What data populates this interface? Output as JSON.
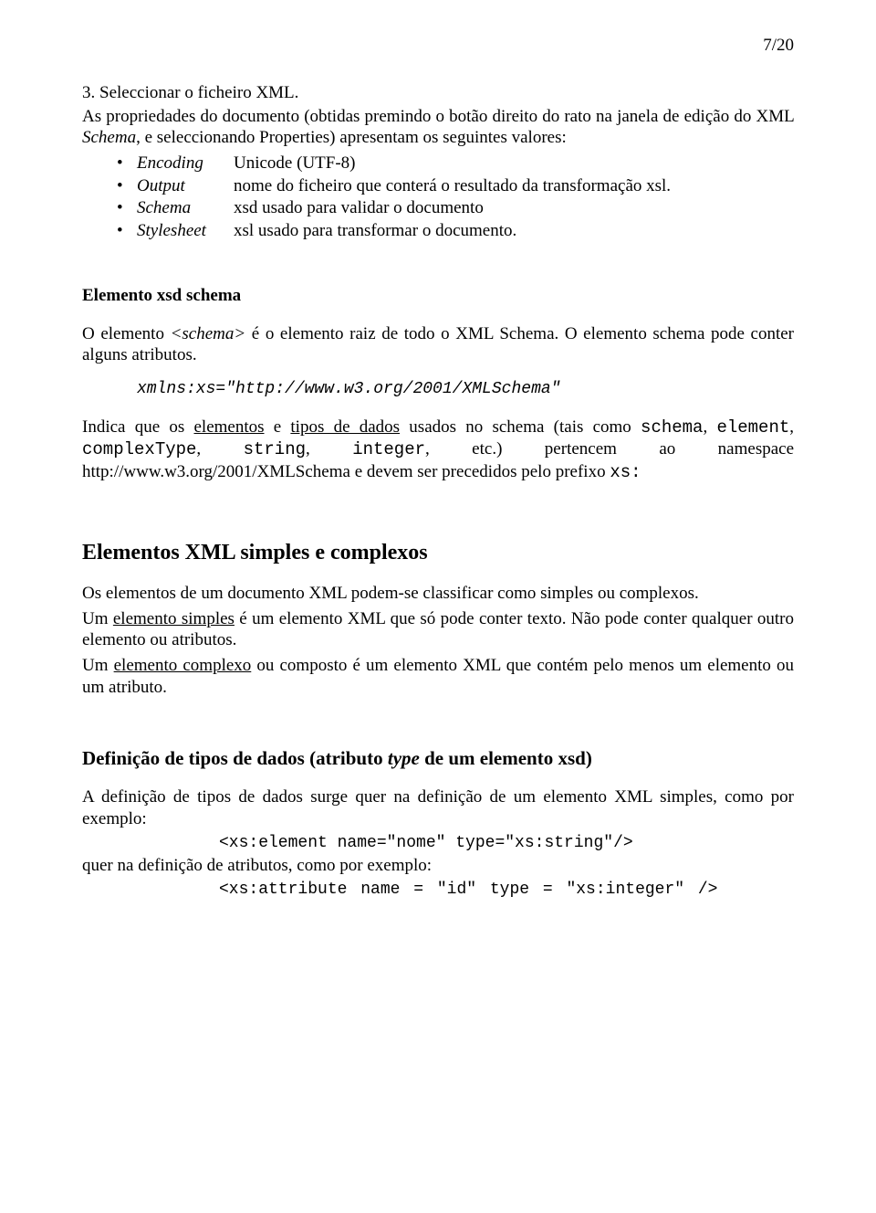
{
  "page_number": "7/20",
  "intro": {
    "line1": "3. Seleccionar o ficheiro XML.",
    "line2_prefix": "As propriedades do documento (obtidas premindo o botão direito do rato na janela de edição do XML",
    "line2_schema_word": "Schema",
    "line2_suffix": ", e seleccionando Properties) apresentam os seguintes valores:"
  },
  "bullets": [
    {
      "term": "Encoding",
      "desc": "Unicode (UTF-8)"
    },
    {
      "term": "Output",
      "desc": "nome do ficheiro que conterá o resultado da transformação xsl."
    },
    {
      "term": "Schema",
      "desc": "xsd usado para validar o documento"
    },
    {
      "term": "Stylesheet",
      "desc": "xsl usado para transformar o documento."
    }
  ],
  "sec1": {
    "title": "Elemento xsd schema",
    "p1_a": "O elemento ",
    "p1_b": "<schema>",
    "p1_c": " é o elemento raiz de todo o XML Schema. O elemento schema pode conter alguns atributos.",
    "code": "xmlns:xs=\"http://www.w3.org/2001/XMLSchema\"",
    "p2_a": "Indica que os ",
    "p2_u1": "elementos",
    "p2_b": " e ",
    "p2_u2": "tipos de dados",
    "p2_c": " usados no schema (tais como ",
    "p2_m1": "schema",
    "p2_comma1": ", ",
    "p2_m2": "element",
    "p2_comma2": ", ",
    "p2_m3": "complexType",
    "p2_comma3": ", ",
    "p2_m4": "string",
    "p2_comma4": ", ",
    "p2_m5": "integer",
    "p2_d": ", etc.) pertencem ao namespace http://www.w3.org/2001/XMLSchema e devem ser precedidos pelo prefixo ",
    "p2_m6": "xs:"
  },
  "sec2": {
    "title": "Elementos XML simples e complexos",
    "p1": "Os elementos de um documento XML podem-se classificar como simples ou complexos.",
    "p2_a": "Um ",
    "p2_u": "elemento simples",
    "p2_b": " é um elemento XML que só pode conter texto. Não pode conter qualquer outro elemento ou atributos.",
    "p3_a": "Um ",
    "p3_u": "elemento complexo",
    "p3_b": " ou composto é um elemento XML que contém pelo menos um elemento ou um atributo."
  },
  "sec3": {
    "title_a": "Definição de tipos de dados (atributo ",
    "title_i": "type",
    "title_b": " de um elemento xsd)",
    "p1": "A definição de tipos de dados surge quer na definição de um elemento XML simples, como por exemplo:",
    "code1": "<xs:element name=\"nome\" type=\"xs:string\"/>",
    "p2": "quer na definição de atributos, como por exemplo:",
    "code2": "<xs:attribute  name = \"id\"  type = \"xs:integer\" />"
  }
}
